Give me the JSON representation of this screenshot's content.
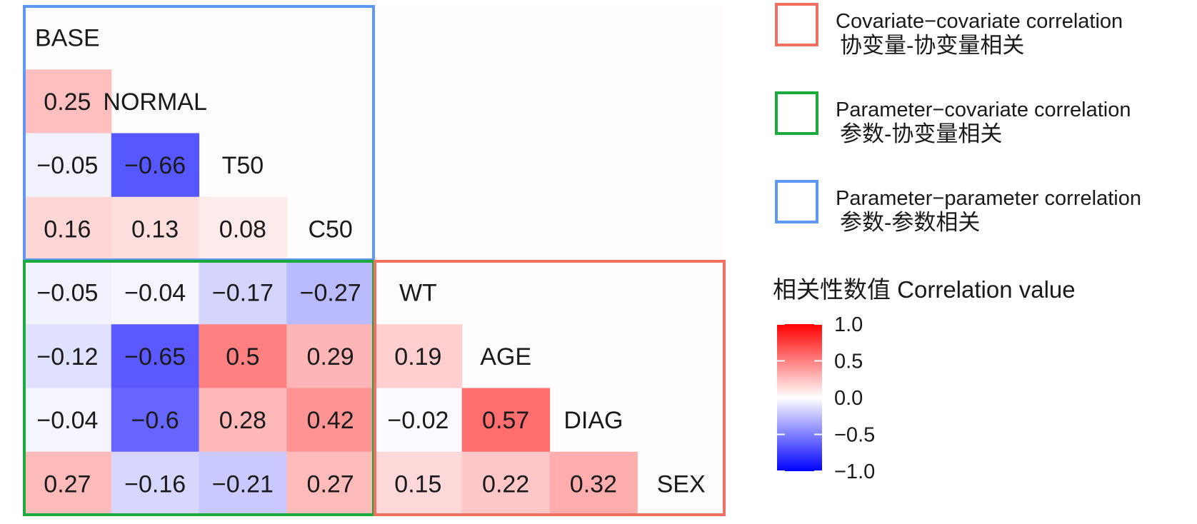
{
  "chart_data": {
    "type": "heatmap",
    "variables": [
      "BASE",
      "NORMAL",
      "T50",
      "C50",
      "WT",
      "AGE",
      "DIAG",
      "SEX"
    ],
    "cells": [
      {
        "row": "NORMAL",
        "col": "BASE",
        "value": 0.25,
        "label": "0.25"
      },
      {
        "row": "T50",
        "col": "BASE",
        "value": -0.05,
        "label": "−0.05"
      },
      {
        "row": "T50",
        "col": "NORMAL",
        "value": -0.66,
        "label": "−0.66"
      },
      {
        "row": "C50",
        "col": "BASE",
        "value": 0.16,
        "label": "0.16"
      },
      {
        "row": "C50",
        "col": "NORMAL",
        "value": 0.13,
        "label": "0.13"
      },
      {
        "row": "C50",
        "col": "T50",
        "value": 0.08,
        "label": "0.08"
      },
      {
        "row": "WT",
        "col": "BASE",
        "value": -0.05,
        "label": "−0.05"
      },
      {
        "row": "WT",
        "col": "NORMAL",
        "value": -0.04,
        "label": "−0.04"
      },
      {
        "row": "WT",
        "col": "T50",
        "value": -0.17,
        "label": "−0.17"
      },
      {
        "row": "WT",
        "col": "C50",
        "value": -0.27,
        "label": "−0.27"
      },
      {
        "row": "AGE",
        "col": "BASE",
        "value": -0.12,
        "label": "−0.12"
      },
      {
        "row": "AGE",
        "col": "NORMAL",
        "value": -0.65,
        "label": "−0.65"
      },
      {
        "row": "AGE",
        "col": "T50",
        "value": 0.5,
        "label": "0.5"
      },
      {
        "row": "AGE",
        "col": "C50",
        "value": 0.29,
        "label": "0.29"
      },
      {
        "row": "AGE",
        "col": "WT",
        "value": 0.19,
        "label": "0.19"
      },
      {
        "row": "DIAG",
        "col": "BASE",
        "value": -0.04,
        "label": "−0.04"
      },
      {
        "row": "DIAG",
        "col": "NORMAL",
        "value": -0.6,
        "label": "−0.6"
      },
      {
        "row": "DIAG",
        "col": "T50",
        "value": 0.28,
        "label": "0.28"
      },
      {
        "row": "DIAG",
        "col": "C50",
        "value": 0.42,
        "label": "0.42"
      },
      {
        "row": "DIAG",
        "col": "WT",
        "value": -0.02,
        "label": "−0.02"
      },
      {
        "row": "DIAG",
        "col": "AGE",
        "value": 0.57,
        "label": "0.57"
      },
      {
        "row": "SEX",
        "col": "BASE",
        "value": 0.27,
        "label": "0.27"
      },
      {
        "row": "SEX",
        "col": "NORMAL",
        "value": -0.16,
        "label": "−0.16"
      },
      {
        "row": "SEX",
        "col": "T50",
        "value": -0.21,
        "label": "−0.21"
      },
      {
        "row": "SEX",
        "col": "C50",
        "value": 0.27,
        "label": "0.27"
      },
      {
        "row": "SEX",
        "col": "WT",
        "value": 0.15,
        "label": "0.15"
      },
      {
        "row": "SEX",
        "col": "AGE",
        "value": 0.22,
        "label": "0.22"
      },
      {
        "row": "SEX",
        "col": "DIAG",
        "value": 0.32,
        "label": "0.32"
      }
    ],
    "groups": [
      {
        "key": "parameter-parameter",
        "from": "BASE",
        "to": "C50",
        "color": "#5f97f5"
      },
      {
        "key": "parameter-covariate",
        "from": "WT",
        "to": "SEX",
        "cols_from": "BASE",
        "cols_to": "C50",
        "color": "#1aab3c"
      },
      {
        "key": "covariate-covariate",
        "from": "WT",
        "to": "SEX",
        "color": "#f2705f"
      }
    ],
    "color_scale": {
      "min": -1.0,
      "max": 1.0,
      "low": "#0000ff",
      "mid": "#ffffff",
      "high": "#ff0000"
    },
    "legend_boxes": [
      {
        "key": "covariate-covariate",
        "label_en": "Covariate−covariate correlation",
        "label_zh": "协变量-协变量相关",
        "color": "#f2705f"
      },
      {
        "key": "parameter-covariate",
        "label_en": "Parameter−covariate correlation",
        "label_zh": "参数-协变量相关",
        "color": "#1aab3c"
      },
      {
        "key": "parameter-parameter",
        "label_en": "Parameter−parameter correlation",
        "label_zh": "参数-参数相关",
        "color": "#5f97f5"
      }
    ],
    "colorbar": {
      "title": "相关性数值 Correlation value",
      "ticks": [
        {
          "value": 1.0,
          "label": "1.0"
        },
        {
          "value": 0.5,
          "label": "0.5"
        },
        {
          "value": 0.0,
          "label": "0.0"
        },
        {
          "value": -0.5,
          "label": "−0.5"
        },
        {
          "value": -1.0,
          "label": "−1.0"
        }
      ]
    }
  }
}
